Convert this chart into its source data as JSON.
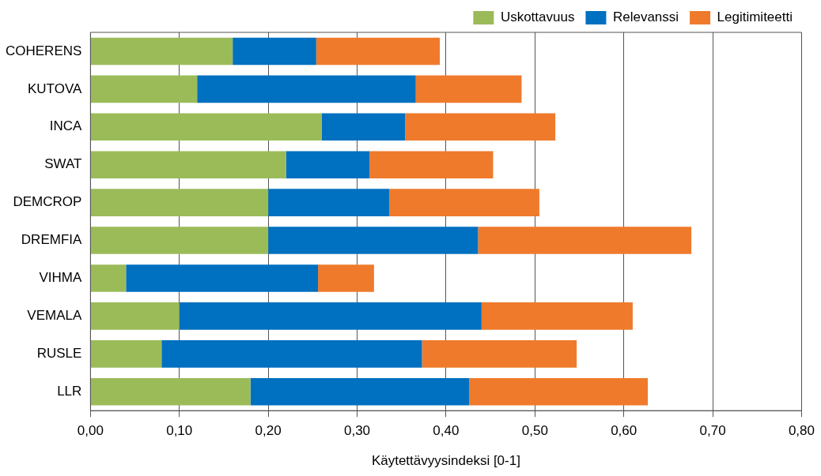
{
  "chart_data": {
    "type": "bar",
    "orientation": "horizontal",
    "stacked": true,
    "xlabel": "Käytettävyysindeksi [0-1]",
    "categories": [
      "COHERENS",
      "KUTOVA",
      "INCA",
      "SWAT",
      "DEMCROP",
      "DREMFIA",
      "VIHMA",
      "VEMALA",
      "RUSLE",
      "LLR"
    ],
    "series": [
      {
        "name": "Uskottavuus",
        "color": "#9bbb59",
        "values": [
          0.16,
          0.12,
          0.26,
          0.22,
          0.2,
          0.2,
          0.04,
          0.1,
          0.08,
          0.18
        ]
      },
      {
        "name": "Relevanssi",
        "color": "#0070c0",
        "values": [
          0.094,
          0.246,
          0.094,
          0.094,
          0.136,
          0.236,
          0.216,
          0.34,
          0.293,
          0.246
        ]
      },
      {
        "name": "Legitimiteetti",
        "color": "#ef7a2c",
        "values": [
          0.139,
          0.119,
          0.169,
          0.139,
          0.169,
          0.24,
          0.063,
          0.17,
          0.174,
          0.201
        ]
      }
    ],
    "xlim": [
      0,
      0.8
    ],
    "xticks": [
      {
        "value": 0,
        "label": "0,00"
      },
      {
        "value": 0.1,
        "label": "0,10"
      },
      {
        "value": 0.2,
        "label": "0,20"
      },
      {
        "value": 0.3,
        "label": "0,30"
      },
      {
        "value": 0.4,
        "label": "0,40"
      },
      {
        "value": 0.5,
        "label": "0,50"
      },
      {
        "value": 0.6,
        "label": "0,60"
      },
      {
        "value": 0.7,
        "label": "0,70"
      },
      {
        "value": 0.8,
        "label": "0,80"
      }
    ],
    "grid": "x",
    "legend": "top right"
  }
}
